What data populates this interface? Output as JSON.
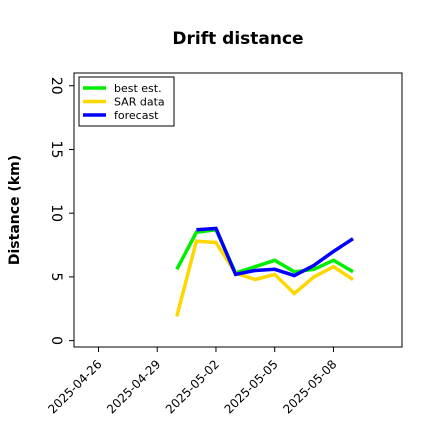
{
  "chart_data": {
    "type": "line",
    "title": "Drift distance",
    "ylabel": "Distance (km)",
    "xlabel": "",
    "ylim": [
      -0.5,
      21
    ],
    "xlim": [
      "2025-04-24T18:00",
      "2025-05-11T12:00"
    ],
    "yticks": [
      0,
      5,
      10,
      15,
      20
    ],
    "xticks": [
      "2025-04-26",
      "2025-04-29",
      "2025-05-02",
      "2025-05-05",
      "2025-05-08"
    ],
    "y_tick_rotation": 90,
    "x_tick_rotation": 45,
    "grid": false,
    "legend_position": "top-left",
    "series": [
      {
        "name": "best est.",
        "color": "#00ee00",
        "x": [
          "2025-04-30T00:00",
          "2025-05-01T00:00",
          "2025-05-02T00:00",
          "2025-05-03T00:00",
          "2025-05-04T00:00",
          "2025-05-05T00:00",
          "2025-05-06T00:00",
          "2025-05-07T00:00",
          "2025-05-08T00:00",
          "2025-05-09T00:00"
        ],
        "values": [
          5.6,
          8.5,
          8.7,
          5.3,
          5.8,
          6.3,
          5.4,
          5.6,
          6.3,
          5.4
        ]
      },
      {
        "name": "SAR data",
        "color": "#ffd700",
        "x": [
          "2025-04-30T00:00",
          "2025-05-01T00:00",
          "2025-05-02T00:00",
          "2025-05-03T00:00",
          "2025-05-04T00:00",
          "2025-05-05T00:00",
          "2025-05-06T00:00",
          "2025-05-07T00:00",
          "2025-05-08T00:00",
          "2025-05-09T00:00"
        ],
        "values": [
          1.9,
          7.8,
          7.7,
          5.3,
          4.8,
          5.2,
          3.7,
          5.0,
          5.8,
          4.8
        ]
      },
      {
        "name": "forecast",
        "color": "#0000ff",
        "x": [
          "2025-05-01T00:00",
          "2025-05-02T00:00",
          "2025-05-03T00:00",
          "2025-05-04T00:00",
          "2025-05-05T00:00",
          "2025-05-06T00:00",
          "2025-05-07T00:00",
          "2025-05-08T00:00",
          "2025-05-09T00:00"
        ],
        "values": [
          8.7,
          8.8,
          5.2,
          5.5,
          5.6,
          5.1,
          5.9,
          7.0,
          8.0
        ]
      }
    ]
  }
}
